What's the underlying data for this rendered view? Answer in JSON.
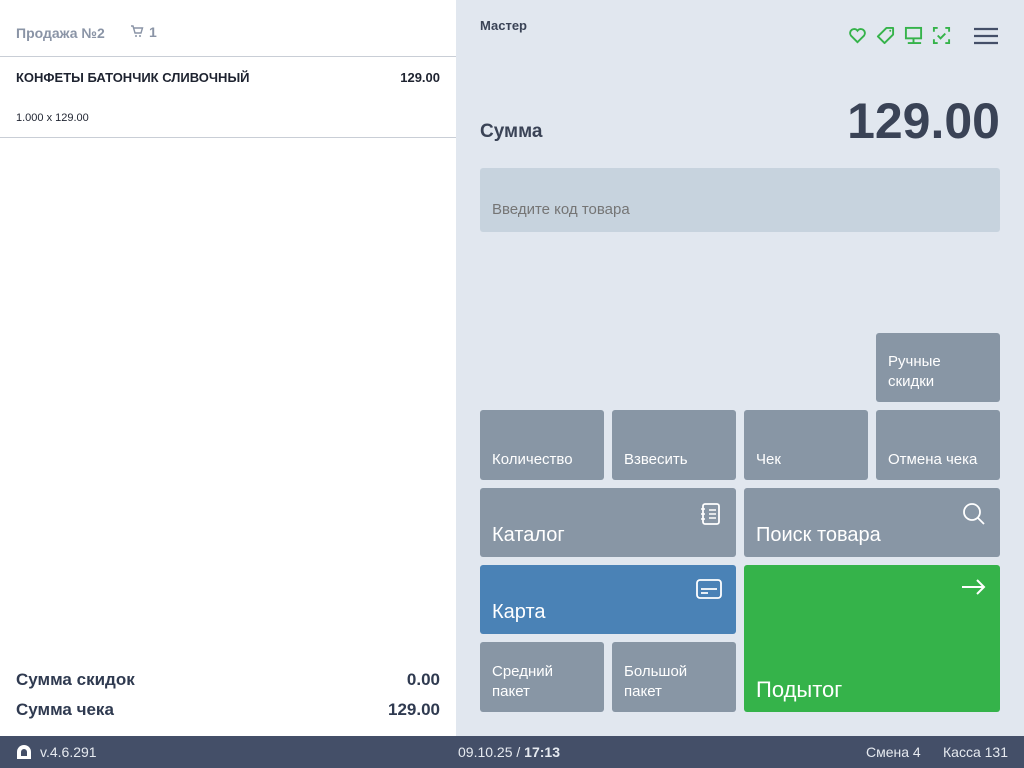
{
  "sale": {
    "title": "Продажа №2",
    "cart_count": "1"
  },
  "items": [
    {
      "name": "КОНФЕТЫ БАТОНЧИК СЛИВОЧНЫЙ",
      "total": "129.00",
      "detail": "1.000 x 129.00"
    }
  ],
  "totals": {
    "discount_label": "Сумма скидок",
    "discount_value": "0.00",
    "receipt_label": "Сумма чека",
    "receipt_value": "129.00"
  },
  "header": {
    "user": "Мастер",
    "icons": [
      "heart-icon",
      "tag-icon",
      "monitor-icon",
      "scan-check-icon",
      "menu-icon"
    ]
  },
  "sum": {
    "label": "Сумма",
    "value": "129.00"
  },
  "code_input": {
    "placeholder": "Введите код товара",
    "value": ""
  },
  "buttons": {
    "manual_discounts": "Ручные скидки",
    "quantity": "Количество",
    "weigh": "Взвесить",
    "receipt": "Чек",
    "cancel_receipt": "Отмена чека",
    "catalog": "Каталог",
    "search": "Поиск товара",
    "card": "Карта",
    "medium_bag": "Средний пакет",
    "large_bag": "Большой пакет",
    "subtotal": "Подытог"
  },
  "colors": {
    "accent_green": "#35b34a",
    "card_blue": "#4a82b6",
    "button_gray": "#8896a5",
    "footer": "#444f68"
  },
  "footer": {
    "version": "v.4.6.291",
    "date": "09.10.25",
    "time": "17:13",
    "shift": "Смена 4",
    "register": "Касса 131"
  }
}
